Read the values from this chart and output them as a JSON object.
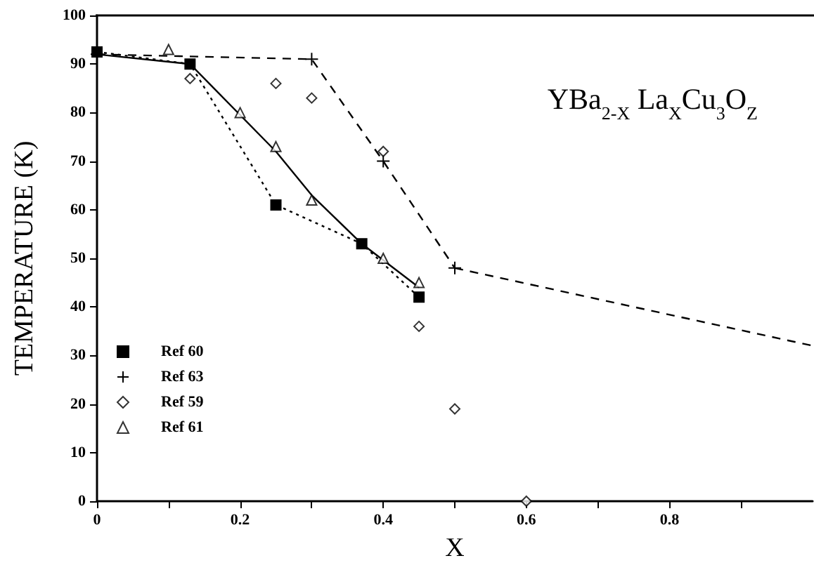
{
  "chart_data": {
    "type": "scatter",
    "xlabel": "X",
    "ylabel": "TEMPERATURE (K)",
    "annotations": [
      "YBa$_{2-X}$ La$_{X}$Cu$_{3}$O$_{Z}$"
    ],
    "xlim": [
      0,
      1
    ],
    "xticks": [
      0,
      {
        "value": 0.1,
        "label": null
      },
      0.2,
      {
        "value": 0.3,
        "label": null
      },
      0.4,
      {
        "value": 0.5,
        "label": null
      },
      0.6,
      {
        "value": 0.7,
        "label": null
      },
      0.8,
      {
        "value": 0.9,
        "label": null
      }
    ],
    "ylim": [
      0,
      100
    ],
    "yticks": [
      0,
      10,
      20,
      30,
      40,
      50,
      60,
      70,
      80,
      90,
      100
    ],
    "grid": false,
    "legend": "bottom left",
    "series": [
      {
        "name": "Ref 60",
        "type": "line",
        "color": "#000000",
        "marker": "square",
        "line_style": "dotted",
        "x": [
          0,
          0.13,
          0.25,
          0.37,
          0.45
        ],
        "values": [
          92.5,
          90,
          61,
          53,
          42
        ]
      },
      {
        "name": "Ref 63",
        "type": "line",
        "color": "#000000",
        "marker": "cross",
        "line_style": "dashed",
        "x": [
          0,
          0.3,
          0.4,
          0.5
        ],
        "values": [
          92,
          91,
          70,
          48
        ]
      },
      {
        "name": "Ref 59",
        "color": "#000000",
        "marker": "diamond",
        "x": [
          0.13,
          0.25,
          0.3,
          0.4,
          0.45,
          0.5,
          0.6
        ],
        "values": [
          87,
          86,
          83,
          72,
          36,
          19,
          0
        ]
      },
      {
        "name": "Ref 61",
        "type": "scatter",
        "color": "#000000",
        "marker": "triangle",
        "x": [
          0.1,
          0.2,
          0.25,
          0.3,
          0.4,
          0.45
        ],
        "values": [
          93,
          80,
          73,
          62,
          50,
          45
        ]
      },
      {
        "type": "line",
        "color": "#000000",
        "marker": "none",
        "line_style": "solid",
        "x": [
          0,
          0.13,
          0.25,
          0.3,
          0.37,
          0.45
        ],
        "values": [
          92,
          90,
          72,
          63,
          53,
          44
        ]
      },
      {
        "type": "line",
        "color": "#000000",
        "marker": "none",
        "line_style": "dashed",
        "x": [
          0.5,
          1
        ],
        "values": [
          48,
          32
        ]
      }
    ]
  }
}
